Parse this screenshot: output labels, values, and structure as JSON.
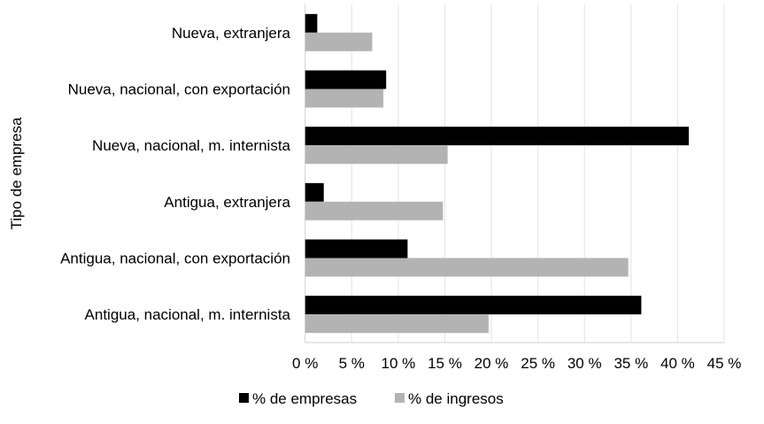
{
  "chart_data": {
    "type": "bar",
    "orientation": "horizontal",
    "title": "",
    "xlabel": "",
    "ylabel": "Tipo de empresa",
    "categories": [
      "Nueva, extranjera",
      "Nueva, nacional, con exportación",
      "Nueva, nacional, m. internista",
      "Antigua, extranjera",
      "Antigua, nacional, con exportación",
      "Antigua, nacional, m. internista"
    ],
    "series": [
      {
        "name": "% de empresas",
        "color": "#000000",
        "values": [
          1.3,
          8.7,
          41.2,
          2.0,
          11.0,
          36.1
        ]
      },
      {
        "name": "% de ingresos",
        "color": "#b3b3b3",
        "values": [
          7.2,
          8.4,
          15.3,
          14.8,
          34.7,
          19.7
        ]
      }
    ],
    "xlim": [
      0,
      45
    ],
    "xticks": [
      "0 %",
      "5 %",
      "10 %",
      "15 %",
      "20 %",
      "25 %",
      "30 %",
      "35 %",
      "40 %",
      "45 %"
    ],
    "grid": true,
    "legend": "bottom"
  }
}
